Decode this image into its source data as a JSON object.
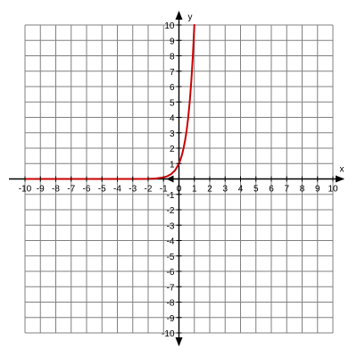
{
  "chart_data": {
    "type": "line",
    "title": "",
    "xlabel": "x",
    "ylabel": "y",
    "xlim": [
      -10,
      10
    ],
    "ylim": [
      -10,
      10
    ],
    "grid": true,
    "x_ticks": [
      "-10",
      "-9",
      "-8",
      "-7",
      "-6",
      "-5",
      "-4",
      "-3",
      "-2",
      "-1",
      "0",
      "1",
      "2",
      "3",
      "4",
      "5",
      "6",
      "7",
      "8",
      "9",
      "10"
    ],
    "y_ticks": [
      "-10",
      "-9",
      "-8",
      "-7",
      "-6",
      "-5",
      "-4",
      "-3",
      "-2",
      "-1",
      "1",
      "2",
      "3",
      "4",
      "5",
      "6",
      "7",
      "8",
      "9",
      "10"
    ],
    "series": [
      {
        "color": "#cc0000",
        "x": [
          -10,
          -8,
          -6,
          -4,
          -3,
          -2,
          -1.5,
          -1,
          -0.75,
          -0.5,
          -0.25,
          0,
          0.1,
          0.2,
          0.3,
          0.4,
          0.5,
          0.6,
          0.7,
          0.8,
          0.9,
          1.0,
          1.05
        ],
        "y": [
          0,
          0,
          0,
          0,
          0,
          0.01,
          0.03,
          0.1,
          0.18,
          0.32,
          0.56,
          1.0,
          1.26,
          1.58,
          2.0,
          2.51,
          3.16,
          3.98,
          5.01,
          6.31,
          7.94,
          10.0,
          10.0
        ]
      }
    ]
  },
  "colors": {
    "grid": "#808080",
    "axis": "#000000",
    "curve": "#cc0000"
  }
}
